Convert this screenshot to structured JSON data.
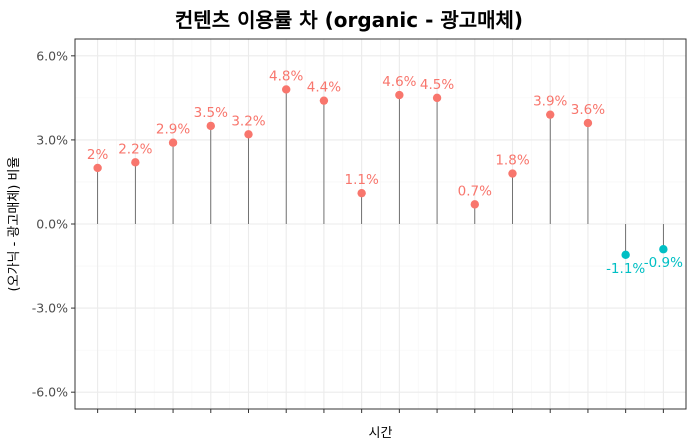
{
  "chart_data": {
    "type": "lollipop",
    "title": "컨텐츠 이용률 차 (organic - 광고매체)",
    "xlabel": "시간",
    "ylabel": "(오가닉 - 광고매체) 비율",
    "ylim": [
      -6.6,
      6.6
    ],
    "yticks": [
      -6.0,
      -3.0,
      0.0,
      3.0,
      6.0
    ],
    "ytick_labels": [
      "-6.0%",
      "-3.0%",
      "0.0%",
      "3.0%",
      "6.0%"
    ],
    "x": [
      1,
      2,
      3,
      4,
      5,
      6,
      7,
      8,
      9,
      10,
      11,
      12,
      13,
      14,
      15,
      16
    ],
    "values": [
      2.0,
      2.2,
      2.9,
      3.5,
      3.2,
      4.8,
      4.4,
      1.1,
      4.6,
      4.5,
      0.7,
      1.8,
      3.9,
      3.6,
      -1.1,
      -0.9
    ],
    "labels": [
      "2%",
      "2.2%",
      "2.9%",
      "3.5%",
      "3.2%",
      "4.8%",
      "4.4%",
      "1.1%",
      "4.6%",
      "4.5%",
      "0.7%",
      "1.8%",
      "3.9%",
      "3.6%",
      "-1.1%",
      "-0.9%"
    ],
    "colors": {
      "positive": "#F8766D",
      "negative": "#00BFC4",
      "stem": "#555555",
      "grid_major": "#ebebeb",
      "grid_minor": "#f5f5f5",
      "border": "#333333"
    },
    "grid": true,
    "legend": "none"
  }
}
